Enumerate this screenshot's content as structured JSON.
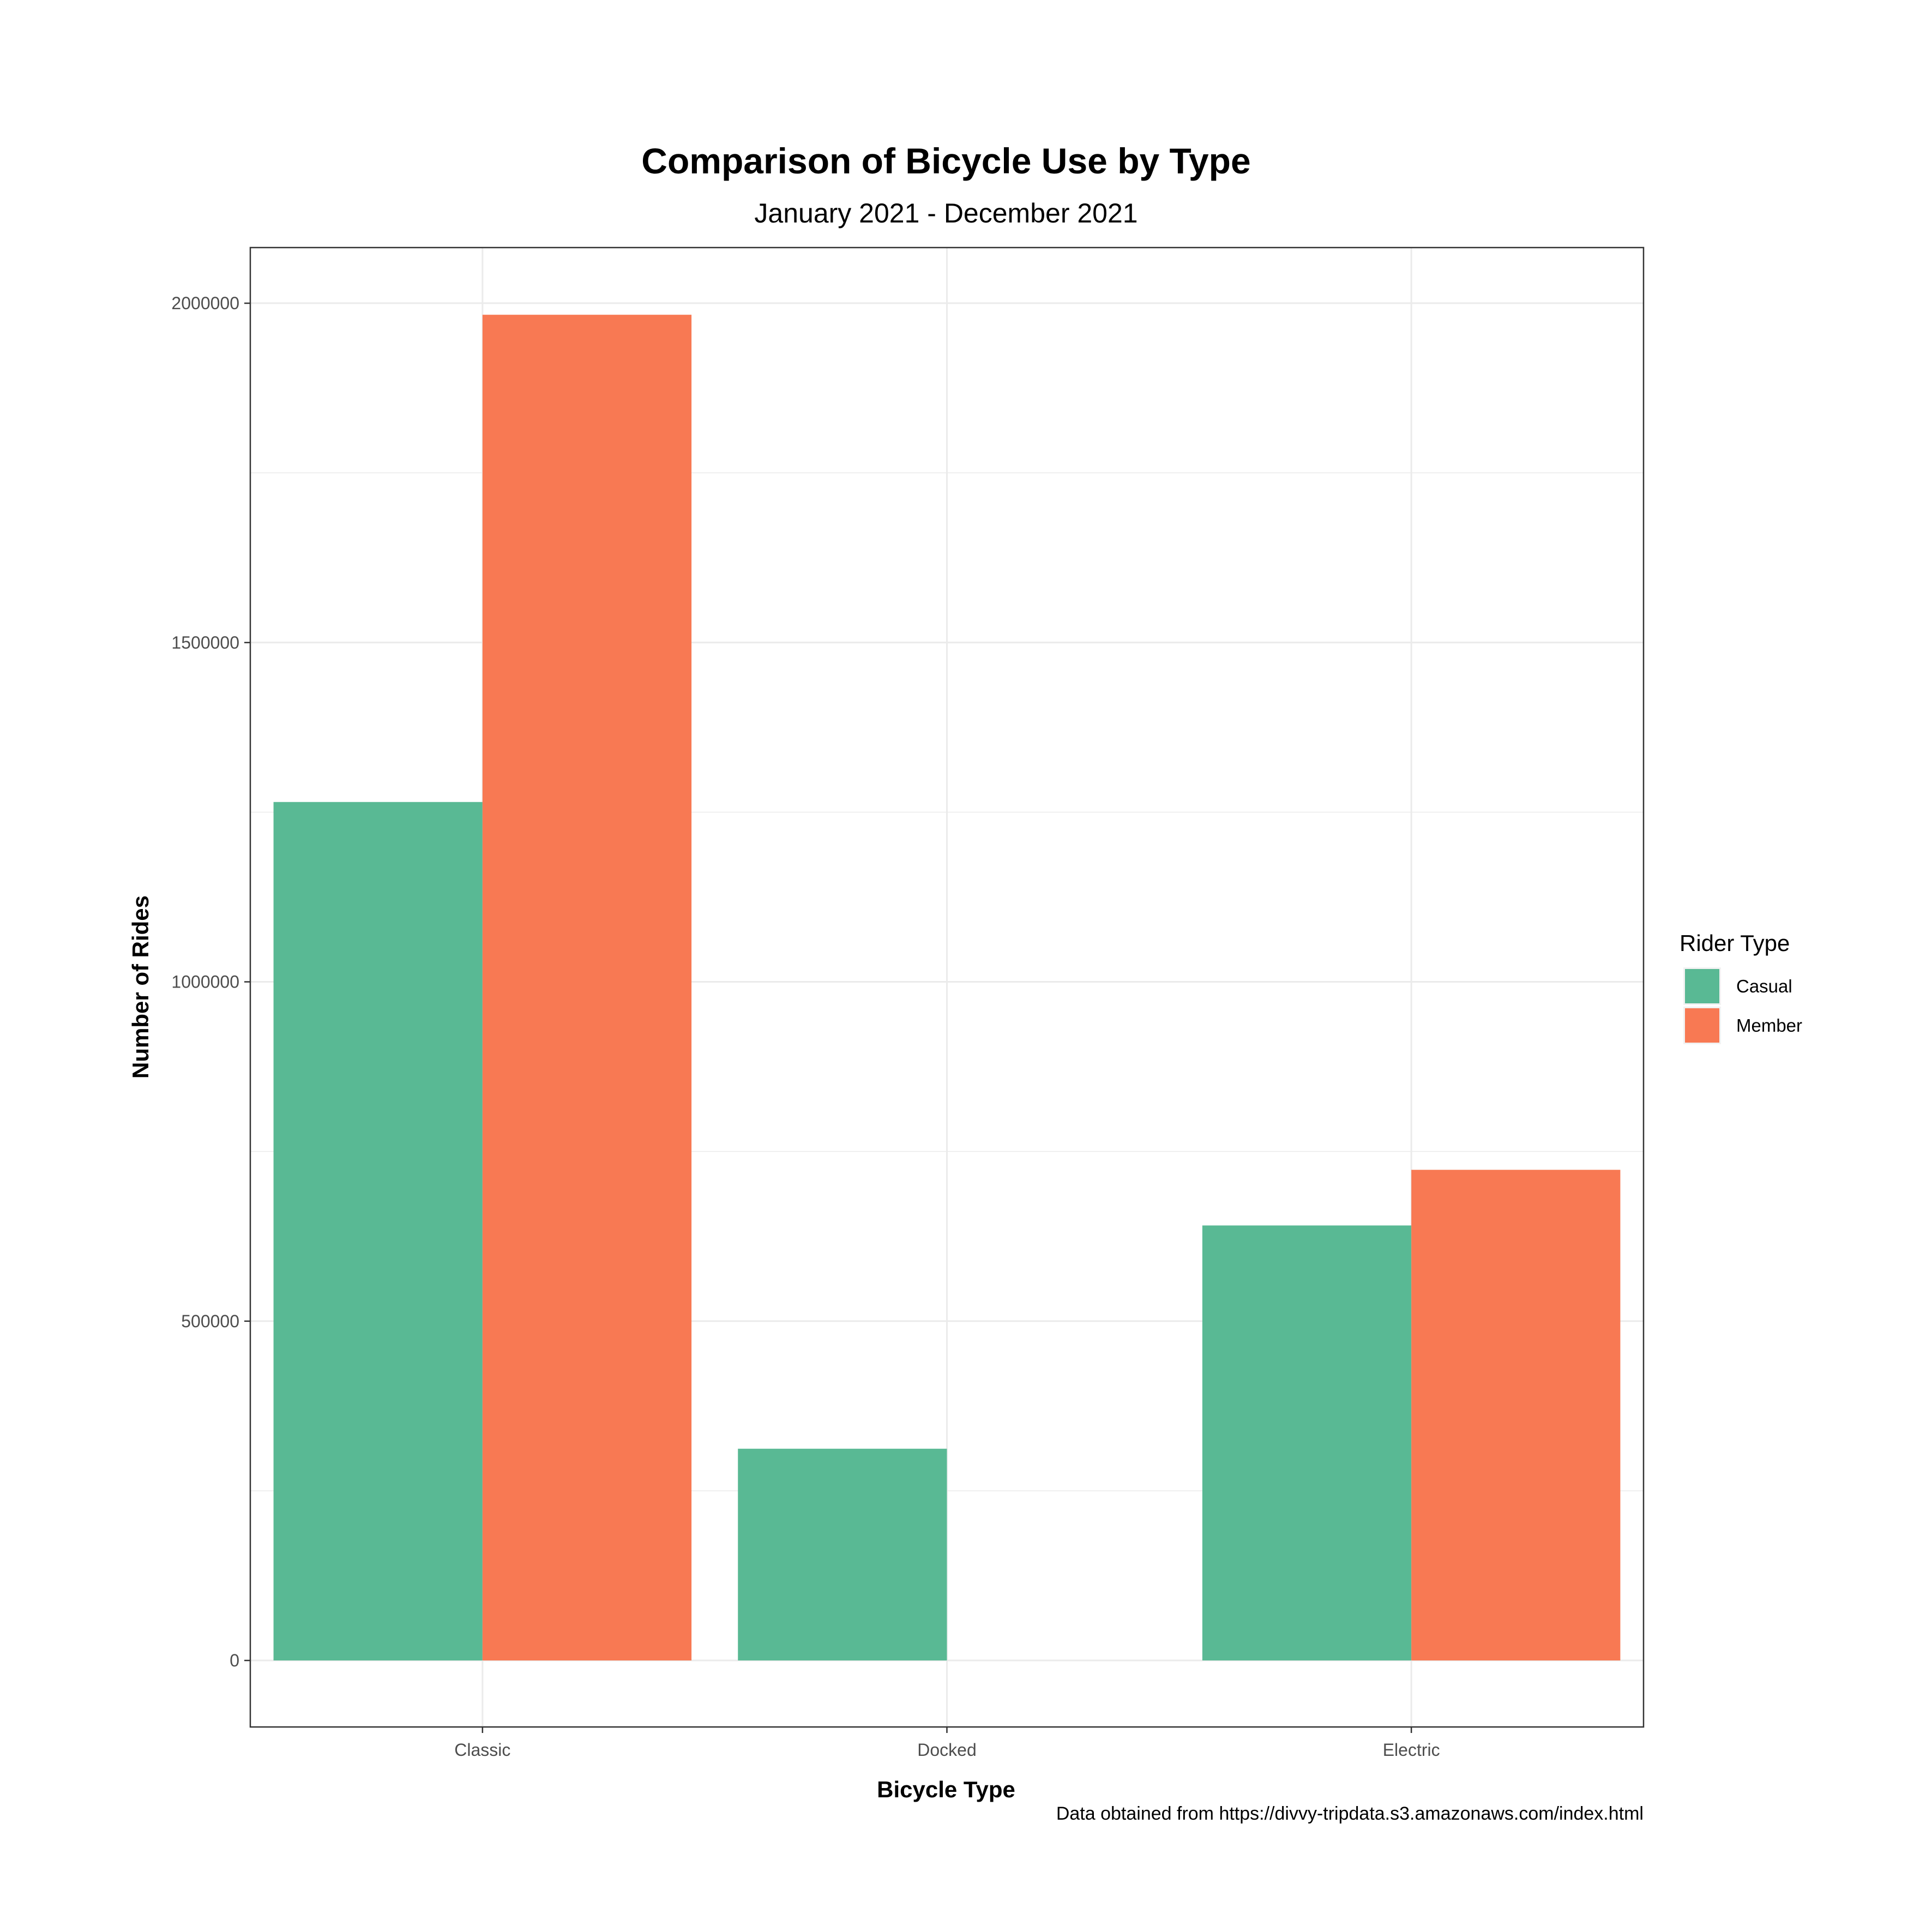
{
  "chart_data": {
    "type": "bar",
    "title": "Comparison of Bicycle Use by Type",
    "subtitle": "January 2021 - December 2021",
    "xlabel": "Bicycle Type",
    "ylabel": "Number of Rides",
    "caption": "Data obtained from https://divvy-tripdata.s3.amazonaws.com/index.html",
    "categories": [
      "Classic",
      "Docked",
      "Electric"
    ],
    "series": [
      {
        "name": "Casual",
        "color": "#59b994",
        "values": [
          1265000,
          312000,
          641000
        ]
      },
      {
        "name": "Member",
        "color": "#f87953",
        "values": [
          1983000,
          0,
          723000
        ]
      }
    ],
    "yticks": [
      0,
      500000,
      1000000,
      1500000,
      2000000
    ],
    "ytick_labels": [
      "0",
      "500000",
      "1000000",
      "1500000",
      "2000000"
    ],
    "ylim": [
      -98000,
      2082000
    ],
    "legend_title": "Rider Type",
    "legend_position": "right",
    "grid": true
  }
}
